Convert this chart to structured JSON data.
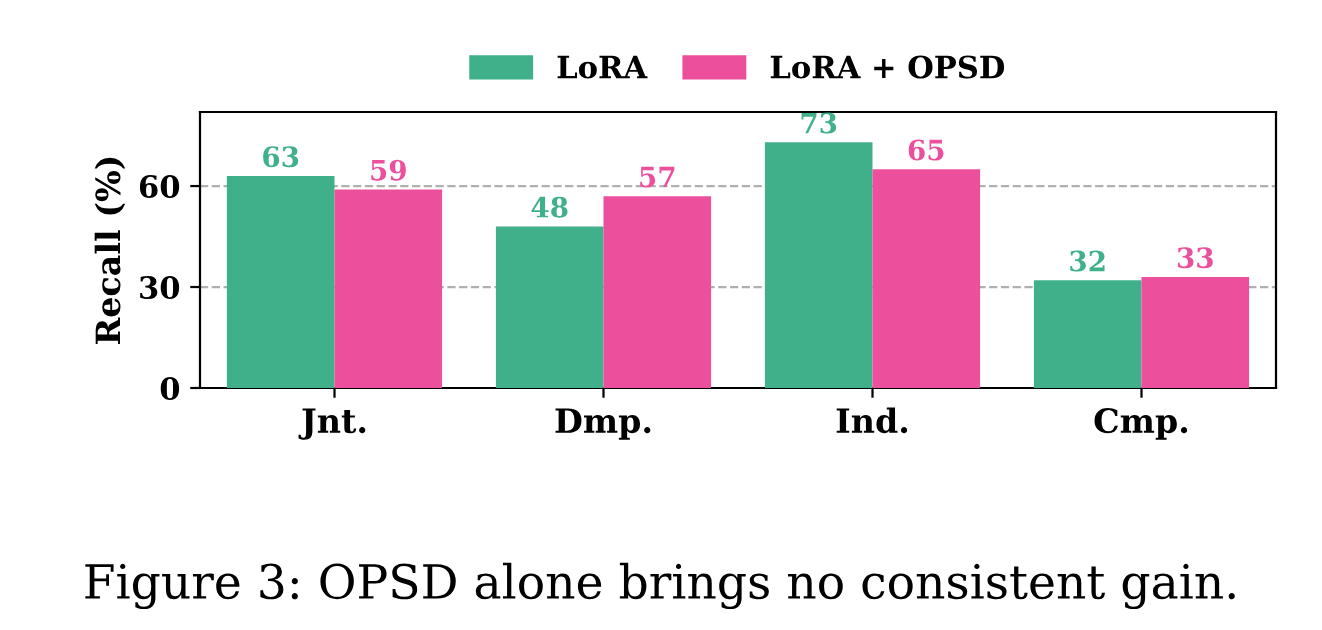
{
  "chart_data": {
    "type": "bar",
    "ylabel": "Recall (%)",
    "categories": [
      "Jnt.",
      "Dmp.",
      "Ind.",
      "Cmp."
    ],
    "series": [
      {
        "name": "LoRA",
        "color": "#40b08a",
        "values": [
          63,
          48,
          73,
          32
        ]
      },
      {
        "name": "LoRA + OPSD",
        "color": "#ec4f9c",
        "values": [
          59,
          57,
          65,
          33
        ]
      }
    ],
    "ylim": [
      0,
      82
    ],
    "yticks": [
      0,
      30,
      60
    ],
    "grid": "y",
    "legend": "top",
    "data_labels": true,
    "annotations": [
      "Figure 3: OPSD alone brings no consistent gain."
    ]
  }
}
